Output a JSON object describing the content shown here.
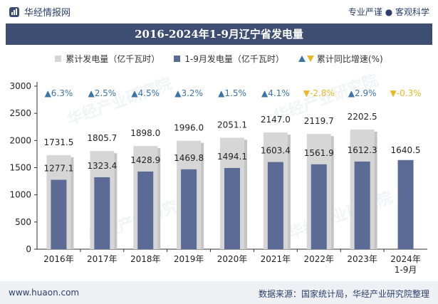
{
  "header": {
    "brand": "华经情报网",
    "tagline": "专业严谨 ● 客观科学"
  },
  "title": "2016-2024年1-9月辽宁省发电量",
  "legend": {
    "total": "累计发电量（亿千瓦时）",
    "month": "1-9月发电量（亿千瓦时）",
    "growth": "累计同比增速(%)"
  },
  "chart_data": {
    "type": "bar",
    "title": "2016-2024年1-9月辽宁省发电量",
    "categories": [
      "2016年",
      "2017年",
      "2018年",
      "2019年",
      "2020年",
      "2021年",
      "2022年",
      "2023年",
      "2024年\n1-9月"
    ],
    "series": [
      {
        "name": "累计发电量（亿千瓦时）",
        "values": [
          1731.5,
          1805.7,
          1898.0,
          1996.0,
          2051.1,
          2147.0,
          2119.7,
          2202.5,
          null
        ]
      },
      {
        "name": "1-9月发电量（亿千瓦时）",
        "values": [
          1277.1,
          1323.4,
          1428.9,
          1469.8,
          1494.1,
          1603.4,
          1561.9,
          1612.3,
          1640.5
        ]
      }
    ],
    "growth": [
      6.3,
      2.5,
      4.5,
      3.2,
      1.5,
      4.1,
      -2.8,
      2.9,
      -0.3
    ],
    "growth_labels": [
      "▲6.3%",
      "▲2.5%",
      "▲4.5%",
      "▲3.2%",
      "▲1.5%",
      "▲4.1%",
      "▼-2.8%",
      "▲2.9%",
      "▼-0.3%"
    ],
    "yticks": [
      0,
      500,
      1000,
      1500,
      2000,
      2500,
      3000
    ],
    "ylim": [
      0,
      3000
    ],
    "xlabel": "",
    "ylabel": "",
    "grid": false
  },
  "colors": {
    "total_bar": "#d6d6d6",
    "month_bar": "#5b6b96",
    "up": "#3b73a6",
    "down": "#e8b828"
  },
  "footer": {
    "website": "www.huaon.com",
    "source": "数据来源：国家统计局，华经产业研究院整理"
  }
}
